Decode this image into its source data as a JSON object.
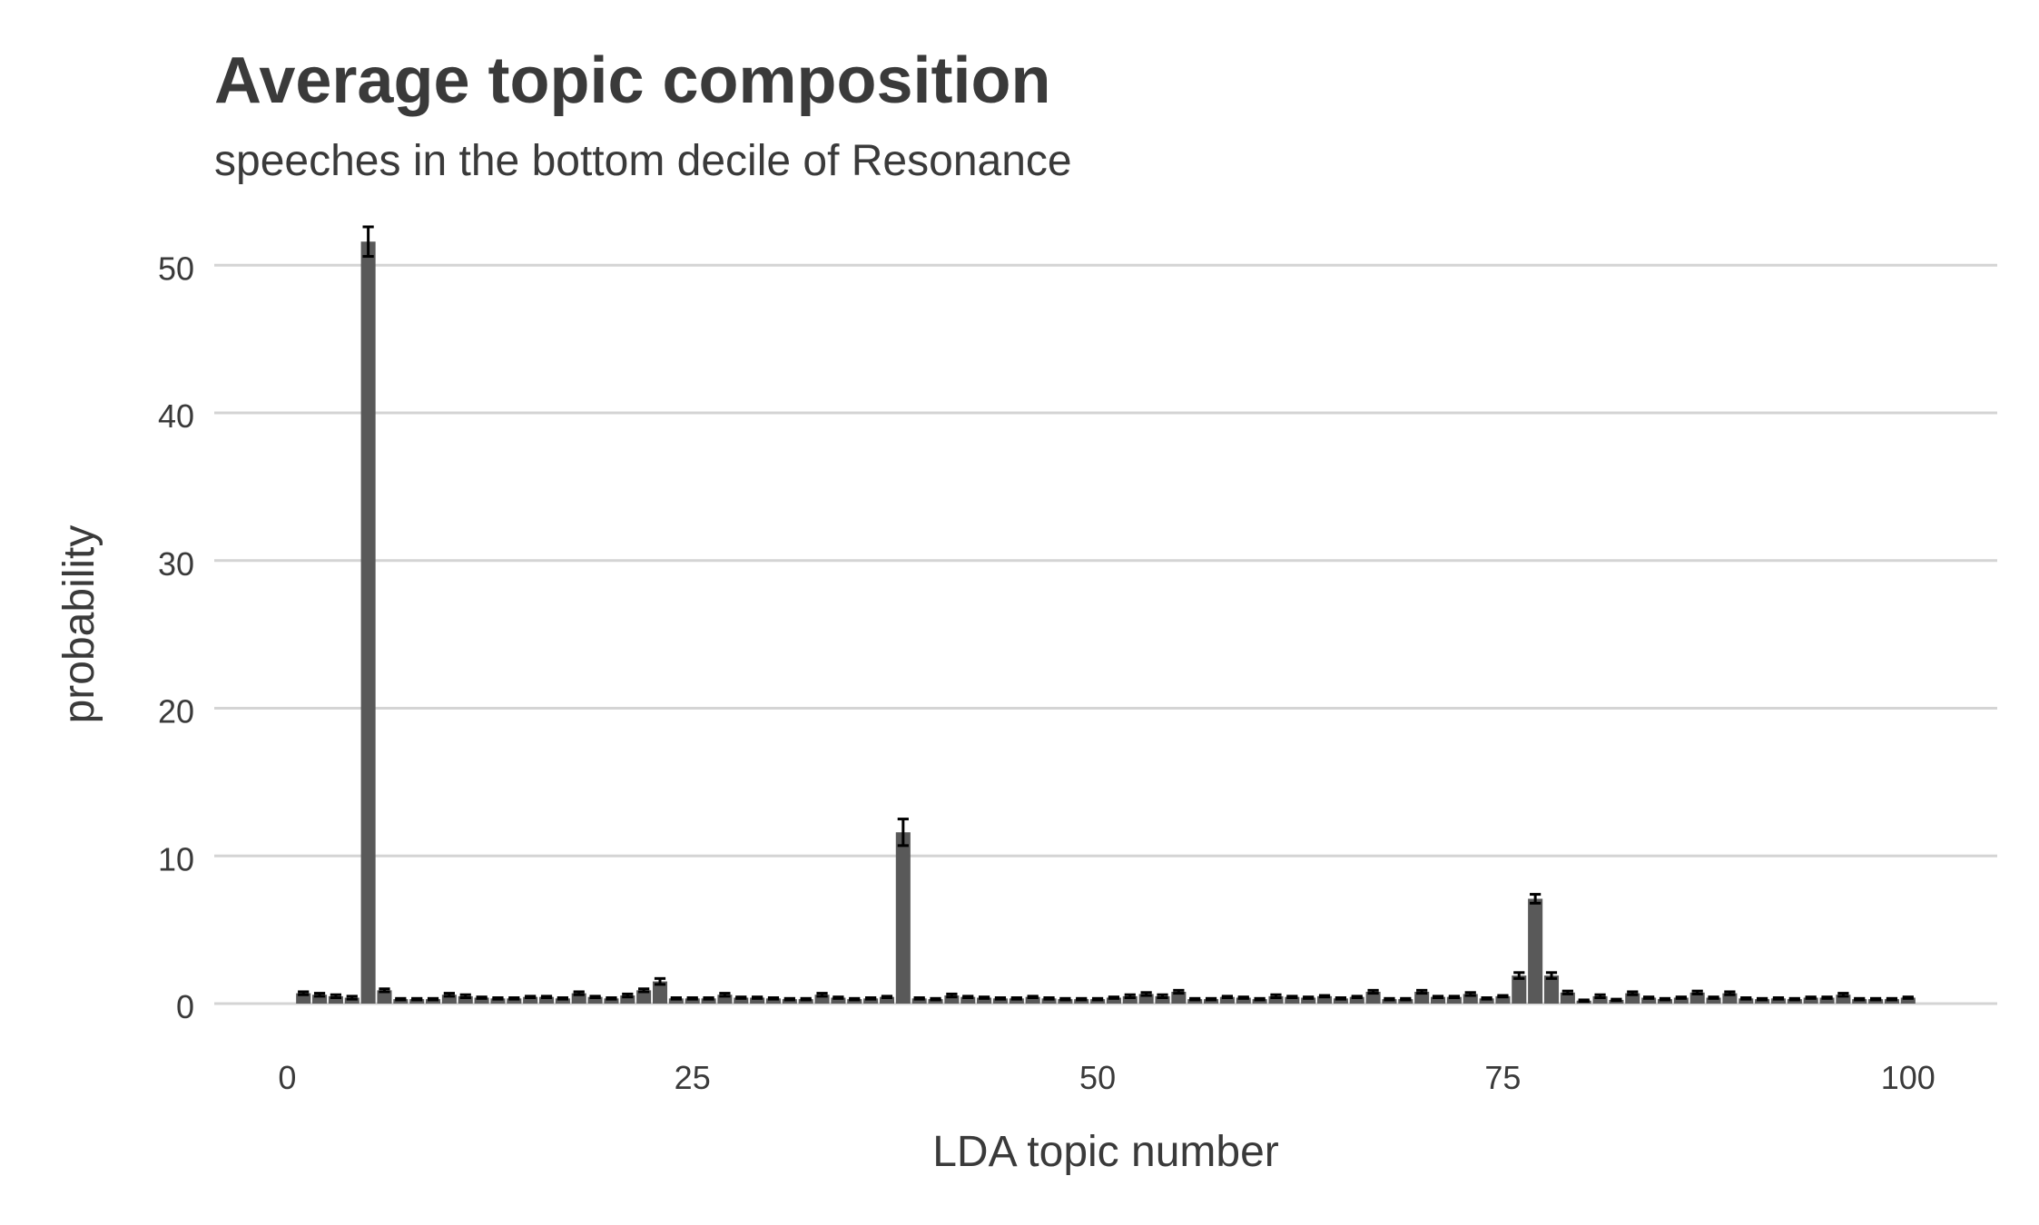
{
  "chart_data": {
    "type": "bar",
    "title": "Average topic composition",
    "subtitle": "speeches in the bottom decile of Resonance",
    "xlabel": "LDA topic number",
    "ylabel": "probability",
    "xlim": [
      -4.5,
      105.5
    ],
    "ylim": [
      0,
      52.6
    ],
    "x_ticks": [
      0,
      25,
      50,
      75,
      100
    ],
    "y_ticks": [
      0,
      10,
      20,
      30,
      40,
      50
    ],
    "grid": {
      "y_major": true,
      "x_major": false
    },
    "bar_color": "#595959",
    "error_bar_color": "#000000",
    "grid_color": "#d4d4d4",
    "text_color": "#3a3a3a",
    "x": [
      1,
      2,
      3,
      4,
      5,
      6,
      7,
      8,
      9,
      10,
      11,
      12,
      13,
      14,
      15,
      16,
      17,
      18,
      19,
      20,
      21,
      22,
      23,
      24,
      25,
      26,
      27,
      28,
      29,
      30,
      31,
      32,
      33,
      34,
      35,
      36,
      37,
      38,
      39,
      40,
      41,
      42,
      43,
      44,
      45,
      46,
      47,
      48,
      49,
      50,
      51,
      52,
      53,
      54,
      55,
      56,
      57,
      58,
      59,
      60,
      61,
      62,
      63,
      64,
      65,
      66,
      67,
      68,
      69,
      70,
      71,
      72,
      73,
      74,
      75,
      76,
      77,
      78,
      79,
      80,
      81,
      82,
      83,
      84,
      85,
      86,
      87,
      88,
      89,
      90,
      91,
      92,
      93,
      94,
      95,
      96,
      97,
      98,
      99,
      100
    ],
    "values": [
      0.7,
      0.6,
      0.5,
      0.4,
      51.6,
      0.9,
      0.3,
      0.3,
      0.3,
      0.6,
      0.5,
      0.4,
      0.35,
      0.35,
      0.45,
      0.45,
      0.35,
      0.7,
      0.45,
      0.35,
      0.55,
      0.9,
      1.5,
      0.35,
      0.35,
      0.35,
      0.6,
      0.4,
      0.4,
      0.35,
      0.3,
      0.3,
      0.6,
      0.4,
      0.3,
      0.35,
      0.45,
      11.6,
      0.35,
      0.3,
      0.55,
      0.45,
      0.4,
      0.35,
      0.35,
      0.45,
      0.35,
      0.3,
      0.3,
      0.3,
      0.4,
      0.5,
      0.65,
      0.5,
      0.8,
      0.3,
      0.3,
      0.45,
      0.4,
      0.3,
      0.5,
      0.45,
      0.4,
      0.5,
      0.35,
      0.45,
      0.8,
      0.3,
      0.3,
      0.8,
      0.45,
      0.45,
      0.65,
      0.35,
      0.5,
      1.9,
      7.1,
      1.9,
      0.75,
      0.2,
      0.5,
      0.25,
      0.7,
      0.4,
      0.3,
      0.4,
      0.75,
      0.4,
      0.7,
      0.35,
      0.3,
      0.35,
      0.3,
      0.4,
      0.4,
      0.6,
      0.3,
      0.3,
      0.3,
      0.4
    ],
    "errors": [
      0.1,
      0.1,
      0.1,
      0.1,
      1.0,
      0.1,
      0.05,
      0.05,
      0.05,
      0.1,
      0.1,
      0.05,
      0.05,
      0.05,
      0.05,
      0.05,
      0.05,
      0.1,
      0.05,
      0.05,
      0.1,
      0.1,
      0.2,
      0.05,
      0.05,
      0.05,
      0.1,
      0.05,
      0.05,
      0.05,
      0.05,
      0.05,
      0.1,
      0.05,
      0.05,
      0.05,
      0.05,
      0.9,
      0.05,
      0.05,
      0.1,
      0.05,
      0.05,
      0.05,
      0.05,
      0.05,
      0.05,
      0.05,
      0.05,
      0.05,
      0.05,
      0.1,
      0.1,
      0.1,
      0.1,
      0.05,
      0.05,
      0.05,
      0.05,
      0.05,
      0.1,
      0.05,
      0.05,
      0.05,
      0.05,
      0.05,
      0.1,
      0.05,
      0.05,
      0.1,
      0.05,
      0.05,
      0.1,
      0.05,
      0.05,
      0.2,
      0.3,
      0.2,
      0.1,
      0.05,
      0.1,
      0.05,
      0.1,
      0.05,
      0.05,
      0.05,
      0.1,
      0.05,
      0.1,
      0.05,
      0.05,
      0.05,
      0.05,
      0.05,
      0.05,
      0.1,
      0.05,
      0.05,
      0.05,
      0.05
    ]
  }
}
